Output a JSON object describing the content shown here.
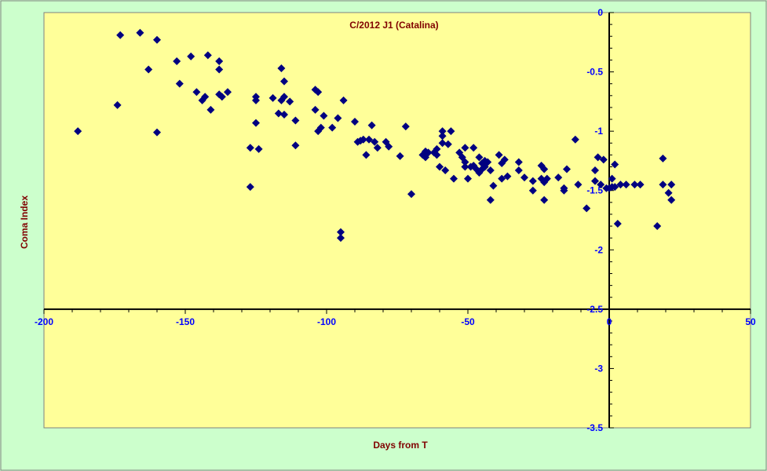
{
  "chart_data": {
    "type": "scatter",
    "title": "C/2012 J1 (Catalina)",
    "xlabel": "Days  from T",
    "ylabel": "Coma Index",
    "xlim": [
      -200,
      50
    ],
    "ylim": [
      -3.5,
      0
    ],
    "xticks": [
      -200,
      -150,
      -100,
      -50,
      0,
      50
    ],
    "yticks": [
      0,
      -0.5,
      -1,
      -1.5,
      -2,
      -2.5,
      -3,
      -3.5
    ],
    "xtick_labels": [
      "-200",
      "-150",
      "-100",
      "-50",
      "0",
      "50"
    ],
    "ytick_labels": [
      "0",
      "-0.5",
      "-1",
      "-1.5",
      "-2",
      "-2.5",
      "-3",
      "-3.5"
    ],
    "x_axis_crosses_y": -2.5,
    "y_axis_crosses_x": 0,
    "grid": false,
    "legend": "none",
    "colors": {
      "background": "#ccffcc",
      "plot_area": "#ffff99",
      "marker": "#000080",
      "title": "#800000",
      "tick_labels": "#0000ff",
      "axis": "#000000"
    },
    "series": [
      {
        "marker": "diamond",
        "points": [
          [
            -188,
            -1.0
          ],
          [
            -174,
            -0.78
          ],
          [
            -173,
            -0.19
          ],
          [
            -166,
            -0.17
          ],
          [
            -163,
            -0.48
          ],
          [
            -160,
            -0.23
          ],
          [
            -160,
            -1.01
          ],
          [
            -153,
            -0.41
          ],
          [
            -152,
            -0.6
          ],
          [
            -148,
            -0.37
          ],
          [
            -146,
            -0.67
          ],
          [
            -144,
            -0.74
          ],
          [
            -143,
            -0.71
          ],
          [
            -142,
            -0.36
          ],
          [
            -141,
            -0.82
          ],
          [
            -138,
            -0.41
          ],
          [
            -138,
            -0.48
          ],
          [
            -138,
            -0.69
          ],
          [
            -137,
            -0.71
          ],
          [
            -135,
            -0.67
          ],
          [
            -127,
            -1.14
          ],
          [
            -127,
            -1.47
          ],
          [
            -125,
            -0.93
          ],
          [
            -125,
            -0.71
          ],
          [
            -125,
            -0.74
          ],
          [
            -124,
            -1.15
          ],
          [
            -119,
            -0.72
          ],
          [
            -117,
            -0.85
          ],
          [
            -116,
            -0.74
          ],
          [
            -116,
            -0.47
          ],
          [
            -115,
            -0.58
          ],
          [
            -115,
            -0.71
          ],
          [
            -115,
            -0.86
          ],
          [
            -113,
            -0.75
          ],
          [
            -111,
            -0.91
          ],
          [
            -111,
            -1.12
          ],
          [
            -104,
            -0.65
          ],
          [
            -104,
            -0.82
          ],
          [
            -103,
            -0.67
          ],
          [
            -103,
            -1.0
          ],
          [
            -102,
            -0.97
          ],
          [
            -101,
            -0.87
          ],
          [
            -98,
            -0.97
          ],
          [
            -96,
            -0.89
          ],
          [
            -95,
            -1.85
          ],
          [
            -95,
            -1.9
          ],
          [
            -94,
            -0.74
          ],
          [
            -90,
            -0.92
          ],
          [
            -89,
            -1.09
          ],
          [
            -88,
            -1.08
          ],
          [
            -87,
            -1.07
          ],
          [
            -86,
            -1.2
          ],
          [
            -85,
            -1.07
          ],
          [
            -84,
            -0.95
          ],
          [
            -83,
            -1.09
          ],
          [
            -82,
            -1.14
          ],
          [
            -79,
            -1.09
          ],
          [
            -78,
            -1.13
          ],
          [
            -74,
            -1.21
          ],
          [
            -72,
            -0.96
          ],
          [
            -70,
            -1.53
          ],
          [
            -66,
            -1.2
          ],
          [
            -65,
            -1.17
          ],
          [
            -65,
            -1.22
          ],
          [
            -64,
            -1.18
          ],
          [
            -62,
            -1.18
          ],
          [
            -61,
            -1.15
          ],
          [
            -61,
            -1.2
          ],
          [
            -60,
            -1.3
          ],
          [
            -59,
            -1.0
          ],
          [
            -59,
            -1.04
          ],
          [
            -59,
            -1.1
          ],
          [
            -58,
            -1.33
          ],
          [
            -57,
            -1.11
          ],
          [
            -56,
            -1.0
          ],
          [
            -55,
            -1.4
          ],
          [
            -53,
            -1.18
          ],
          [
            -52,
            -1.22
          ],
          [
            -51,
            -1.26
          ],
          [
            -51,
            -1.3
          ],
          [
            -51,
            -1.14
          ],
          [
            -50,
            -1.4
          ],
          [
            -49,
            -1.3
          ],
          [
            -48,
            -1.29
          ],
          [
            -48,
            -1.14
          ],
          [
            -47,
            -1.32
          ],
          [
            -46,
            -1.22
          ],
          [
            -46,
            -1.35
          ],
          [
            -45,
            -1.27
          ],
          [
            -45,
            -1.32
          ],
          [
            -44,
            -1.25
          ],
          [
            -44,
            -1.3
          ],
          [
            -43,
            -1.26
          ],
          [
            -42,
            -1.58
          ],
          [
            -42,
            -1.33
          ],
          [
            -41,
            -1.46
          ],
          [
            -39,
            -1.2
          ],
          [
            -38,
            -1.27
          ],
          [
            -38,
            -1.4
          ],
          [
            -37,
            -1.24
          ],
          [
            -36,
            -1.38
          ],
          [
            -32,
            -1.33
          ],
          [
            -32,
            -1.26
          ],
          [
            -30,
            -1.39
          ],
          [
            -27,
            -1.5
          ],
          [
            -27,
            -1.42
          ],
          [
            -24,
            -1.29
          ],
          [
            -24,
            -1.4
          ],
          [
            -23,
            -1.32
          ],
          [
            -23,
            -1.43
          ],
          [
            -23,
            -1.58
          ],
          [
            -22,
            -1.4
          ],
          [
            -18,
            -1.39
          ],
          [
            -16,
            -1.5
          ],
          [
            -16,
            -1.48
          ],
          [
            -15,
            -1.32
          ],
          [
            -12,
            -1.07
          ],
          [
            -11,
            -1.45
          ],
          [
            -8,
            -1.65
          ],
          [
            -5,
            -1.42
          ],
          [
            -5,
            -1.33
          ],
          [
            -4,
            -1.22
          ],
          [
            -3,
            -1.45
          ],
          [
            -2,
            -1.24
          ],
          [
            -1,
            -1.48
          ],
          [
            0,
            -1.48
          ],
          [
            1,
            -1.4
          ],
          [
            1,
            -1.47
          ],
          [
            2,
            -1.28
          ],
          [
            2,
            -1.47
          ],
          [
            3,
            -1.78
          ],
          [
            4,
            -1.45
          ],
          [
            6,
            -1.45
          ],
          [
            9,
            -1.45
          ],
          [
            11,
            -1.45
          ],
          [
            17,
            -1.8
          ],
          [
            19,
            -1.23
          ],
          [
            19,
            -1.45
          ],
          [
            21,
            -1.52
          ],
          [
            22,
            -1.58
          ],
          [
            22,
            -1.45
          ]
        ]
      }
    ]
  }
}
